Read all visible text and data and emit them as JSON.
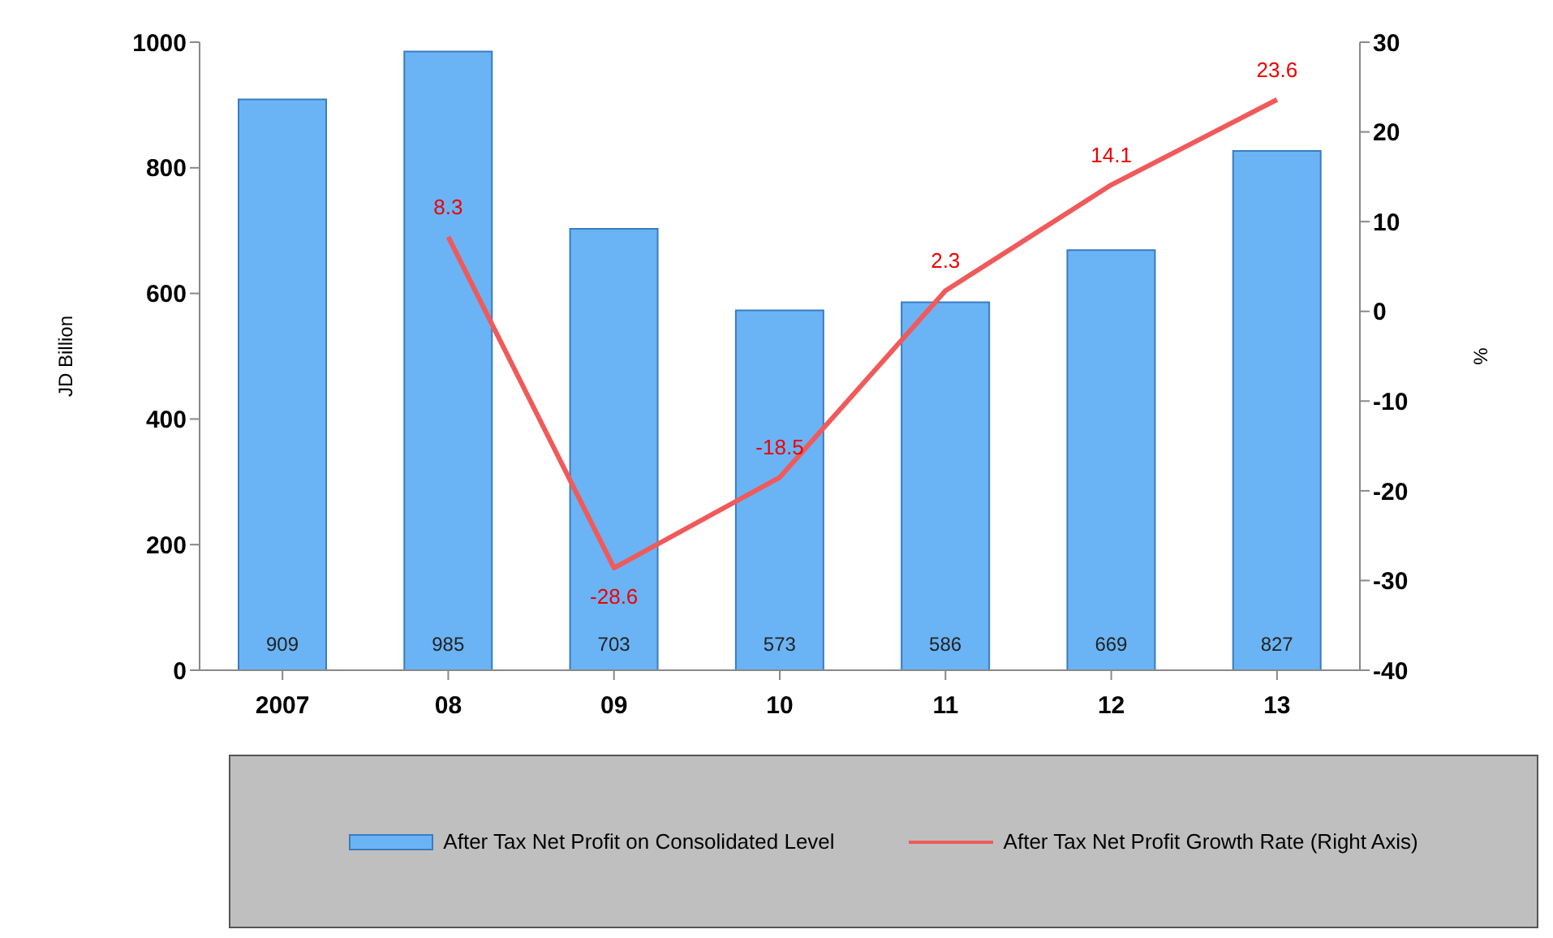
{
  "chart_data": {
    "type": "bar",
    "categories": [
      "2007",
      "08",
      "09",
      "10",
      "11",
      "12",
      "13"
    ],
    "series": [
      {
        "name": "After Tax Net Profit on Consolidated Level",
        "color": "#6ab4f5",
        "values": [
          909,
          985,
          703,
          573,
          586,
          669,
          827
        ]
      },
      {
        "name": "After Tax Net Profit Growth Rate (Right Axis)",
        "type": "line",
        "axis": "y2",
        "color": "#f05a5a",
        "values": [
          null,
          8.3,
          -28.6,
          -18.5,
          2.3,
          14.1,
          23.6
        ]
      }
    ],
    "ylabel": "JD Billion",
    "y2label": "%",
    "ylim": [
      0,
      1000
    ],
    "yticks": [
      0,
      200,
      400,
      600,
      800,
      1000
    ],
    "y2lim": [
      -40,
      30
    ],
    "y2ticks": [
      -40,
      -30,
      -20,
      -10,
      0,
      10,
      20,
      30
    ],
    "data_labels": true,
    "grid": false,
    "legend": "bottom",
    "marker": "none"
  }
}
